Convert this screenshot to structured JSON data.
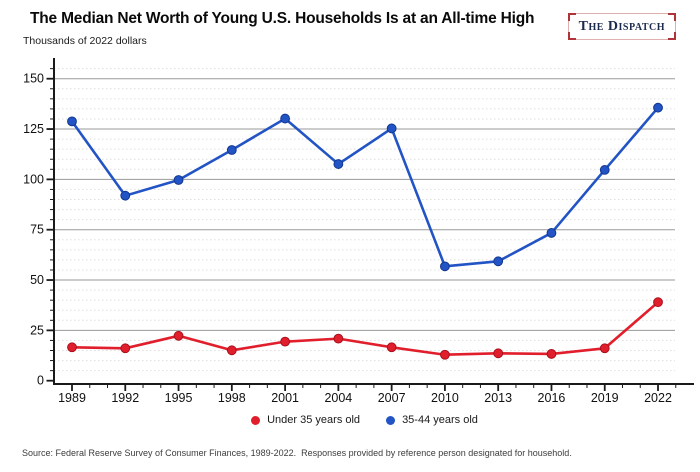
{
  "header": {
    "title": "The Median Net Worth of Young U.S. Households Is at an All-time High",
    "subtitle": "Thousands of 2022 dollars",
    "logo_text": "The Dispatch"
  },
  "chart_data": {
    "type": "line",
    "x": [
      1989,
      1992,
      1995,
      1998,
      2001,
      2004,
      2007,
      2010,
      2013,
      2016,
      2019,
      2022
    ],
    "series": [
      {
        "name": "Under 35 years old",
        "color": "#e11f2c",
        "marker_stroke": "#a90f1b",
        "values": [
          16.6,
          16.1,
          22.3,
          15.1,
          19.4,
          20.9,
          16.6,
          12.9,
          13.6,
          13.3,
          16.1,
          39.0
        ]
      },
      {
        "name": "35-44 years old",
        "color": "#2254c5",
        "marker_stroke": "#12368f",
        "values": [
          128.8,
          91.9,
          99.7,
          114.6,
          130.2,
          107.6,
          125.3,
          56.8,
          59.3,
          73.4,
          104.7,
          135.6
        ]
      }
    ],
    "title": "The Median Net Worth of Young U.S. Households Is at an All-time High",
    "xlabel": "",
    "ylabel": "Thousands of 2022 dollars",
    "ylim": [
      0,
      150
    ],
    "yticks": [
      0,
      25,
      50,
      75,
      100,
      125,
      150
    ],
    "minor_y_step": 5,
    "minor_x_step_years": 1,
    "grid": "major-solid-minor-dashed",
    "legend_position": "bottom-center"
  },
  "footer": {
    "source": "Source: Federal Reserve Survey of Consumer Finances, 1989-2022.  Responses provided by reference person designated for household."
  },
  "colors": {
    "background": "#ffffff",
    "axis": "#1a1a1a",
    "major_grid": "#9a9a9a",
    "minor_grid": "#dedede",
    "tick_text": "#111111",
    "under35_red": "#e11f2c",
    "age3544_blue": "#2254c5",
    "logo_navy": "#1c2b4d",
    "logo_red": "#b03338"
  }
}
